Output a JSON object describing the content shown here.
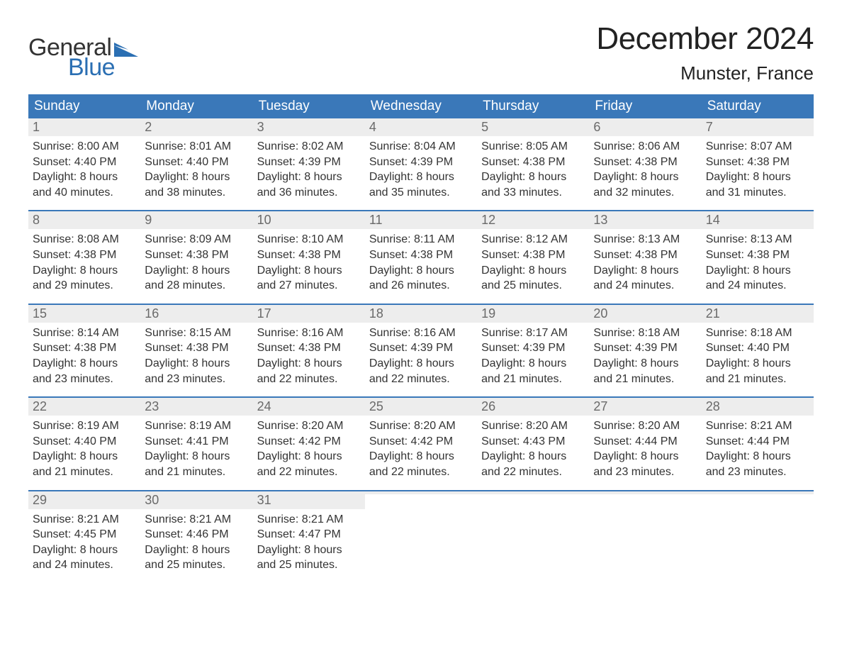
{
  "logo": {
    "line1": "General",
    "line2": "Blue",
    "flag_color": "#2b6fb3"
  },
  "title": "December 2024",
  "location": "Munster, France",
  "header_bg": "#3a78b9",
  "daynum_bg": "#ededed",
  "week_border_color": "#3a78b9",
  "day_headers": [
    "Sunday",
    "Monday",
    "Tuesday",
    "Wednesday",
    "Thursday",
    "Friday",
    "Saturday"
  ],
  "labels": {
    "sunrise": "Sunrise:",
    "sunset": "Sunset:",
    "daylight": "Daylight:"
  },
  "weeks": [
    [
      {
        "n": "1",
        "sunrise": "8:00 AM",
        "sunset": "4:40 PM",
        "daylight": "8 hours and 40 minutes."
      },
      {
        "n": "2",
        "sunrise": "8:01 AM",
        "sunset": "4:40 PM",
        "daylight": "8 hours and 38 minutes."
      },
      {
        "n": "3",
        "sunrise": "8:02 AM",
        "sunset": "4:39 PM",
        "daylight": "8 hours and 36 minutes."
      },
      {
        "n": "4",
        "sunrise": "8:04 AM",
        "sunset": "4:39 PM",
        "daylight": "8 hours and 35 minutes."
      },
      {
        "n": "5",
        "sunrise": "8:05 AM",
        "sunset": "4:38 PM",
        "daylight": "8 hours and 33 minutes."
      },
      {
        "n": "6",
        "sunrise": "8:06 AM",
        "sunset": "4:38 PM",
        "daylight": "8 hours and 32 minutes."
      },
      {
        "n": "7",
        "sunrise": "8:07 AM",
        "sunset": "4:38 PM",
        "daylight": "8 hours and 31 minutes."
      }
    ],
    [
      {
        "n": "8",
        "sunrise": "8:08 AM",
        "sunset": "4:38 PM",
        "daylight": "8 hours and 29 minutes."
      },
      {
        "n": "9",
        "sunrise": "8:09 AM",
        "sunset": "4:38 PM",
        "daylight": "8 hours and 28 minutes."
      },
      {
        "n": "10",
        "sunrise": "8:10 AM",
        "sunset": "4:38 PM",
        "daylight": "8 hours and 27 minutes."
      },
      {
        "n": "11",
        "sunrise": "8:11 AM",
        "sunset": "4:38 PM",
        "daylight": "8 hours and 26 minutes."
      },
      {
        "n": "12",
        "sunrise": "8:12 AM",
        "sunset": "4:38 PM",
        "daylight": "8 hours and 25 minutes."
      },
      {
        "n": "13",
        "sunrise": "8:13 AM",
        "sunset": "4:38 PM",
        "daylight": "8 hours and 24 minutes."
      },
      {
        "n": "14",
        "sunrise": "8:13 AM",
        "sunset": "4:38 PM",
        "daylight": "8 hours and 24 minutes."
      }
    ],
    [
      {
        "n": "15",
        "sunrise": "8:14 AM",
        "sunset": "4:38 PM",
        "daylight": "8 hours and 23 minutes."
      },
      {
        "n": "16",
        "sunrise": "8:15 AM",
        "sunset": "4:38 PM",
        "daylight": "8 hours and 23 minutes."
      },
      {
        "n": "17",
        "sunrise": "8:16 AM",
        "sunset": "4:38 PM",
        "daylight": "8 hours and 22 minutes."
      },
      {
        "n": "18",
        "sunrise": "8:16 AM",
        "sunset": "4:39 PM",
        "daylight": "8 hours and 22 minutes."
      },
      {
        "n": "19",
        "sunrise": "8:17 AM",
        "sunset": "4:39 PM",
        "daylight": "8 hours and 21 minutes."
      },
      {
        "n": "20",
        "sunrise": "8:18 AM",
        "sunset": "4:39 PM",
        "daylight": "8 hours and 21 minutes."
      },
      {
        "n": "21",
        "sunrise": "8:18 AM",
        "sunset": "4:40 PM",
        "daylight": "8 hours and 21 minutes."
      }
    ],
    [
      {
        "n": "22",
        "sunrise": "8:19 AM",
        "sunset": "4:40 PM",
        "daylight": "8 hours and 21 minutes."
      },
      {
        "n": "23",
        "sunrise": "8:19 AM",
        "sunset": "4:41 PM",
        "daylight": "8 hours and 21 minutes."
      },
      {
        "n": "24",
        "sunrise": "8:20 AM",
        "sunset": "4:42 PM",
        "daylight": "8 hours and 22 minutes."
      },
      {
        "n": "25",
        "sunrise": "8:20 AM",
        "sunset": "4:42 PM",
        "daylight": "8 hours and 22 minutes."
      },
      {
        "n": "26",
        "sunrise": "8:20 AM",
        "sunset": "4:43 PM",
        "daylight": "8 hours and 22 minutes."
      },
      {
        "n": "27",
        "sunrise": "8:20 AM",
        "sunset": "4:44 PM",
        "daylight": "8 hours and 23 minutes."
      },
      {
        "n": "28",
        "sunrise": "8:21 AM",
        "sunset": "4:44 PM",
        "daylight": "8 hours and 23 minutes."
      }
    ],
    [
      {
        "n": "29",
        "sunrise": "8:21 AM",
        "sunset": "4:45 PM",
        "daylight": "8 hours and 24 minutes."
      },
      {
        "n": "30",
        "sunrise": "8:21 AM",
        "sunset": "4:46 PM",
        "daylight": "8 hours and 25 minutes."
      },
      {
        "n": "31",
        "sunrise": "8:21 AM",
        "sunset": "4:47 PM",
        "daylight": "8 hours and 25 minutes."
      },
      {
        "empty": true
      },
      {
        "empty": true
      },
      {
        "empty": true
      },
      {
        "empty": true
      }
    ]
  ]
}
